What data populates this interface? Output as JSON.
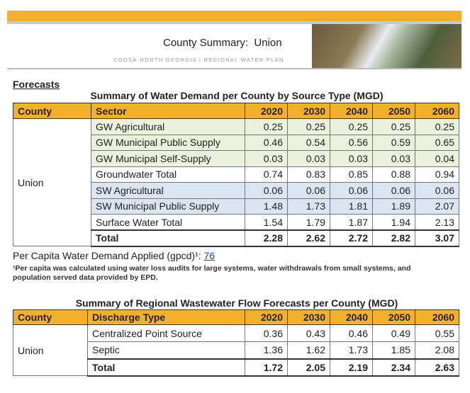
{
  "header": {
    "title": "County Summary:  Union",
    "subtitle": "COOSA-NORTH GEORGIA | REGIONAL WATER PLAN"
  },
  "section_title": "Forecasts",
  "tables": [
    {
      "title": "Summary of Water Demand per County by Source Type (MGD)",
      "columns": [
        "County",
        "Sector",
        "2020",
        "2030",
        "2040",
        "2050",
        "2060"
      ],
      "county": "Union",
      "rows": [
        [
          "GW Agricultural",
          "0.25",
          "0.25",
          "0.25",
          "0.25",
          "0.25"
        ],
        [
          "GW Municipal Public Supply",
          "0.46",
          "0.54",
          "0.56",
          "0.59",
          "0.65"
        ],
        [
          "GW Municipal Self-Supply",
          "0.03",
          "0.03",
          "0.03",
          "0.03",
          "0.04"
        ],
        [
          "Groundwater Total",
          "0.74",
          "0.83",
          "0.85",
          "0.88",
          "0.94"
        ],
        [
          "SW Agricultural",
          "0.06",
          "0.06",
          "0.06",
          "0.06",
          "0.06"
        ],
        [
          "SW Municipal Public Supply",
          "1.48",
          "1.73",
          "1.81",
          "1.89",
          "2.07"
        ],
        [
          "Surface Water Total",
          "1.54",
          "1.79",
          "1.87",
          "1.94",
          "2.13"
        ]
      ],
      "total": [
        "Total",
        "2.28",
        "2.62",
        "2.72",
        "2.82",
        "3.07"
      ]
    },
    {
      "title": "Summary of Regional Wastewater Flow Forecasts per County (MGD)",
      "columns": [
        "County",
        "Discharge Type",
        "2020",
        "2030",
        "2040",
        "2050",
        "2060"
      ],
      "county": "Union",
      "rows": [
        [
          "Centralized Point Source",
          "0.36",
          "0.43",
          "0.46",
          "0.49",
          "0.55"
        ],
        [
          "Septic",
          "1.36",
          "1.62",
          "1.73",
          "1.85",
          "2.08"
        ]
      ],
      "total": [
        "Total",
        "1.72",
        "2.05",
        "2.19",
        "2.34",
        "2.63"
      ]
    }
  ],
  "per_capita": {
    "label": "Per Capita Water Demand Applied (gpcd)¹:",
    "value": "76"
  },
  "footnote": "¹Per capita was calculated using water loss audits for large systems, water withdrawals from small systems, and population served data provided by EPD."
}
